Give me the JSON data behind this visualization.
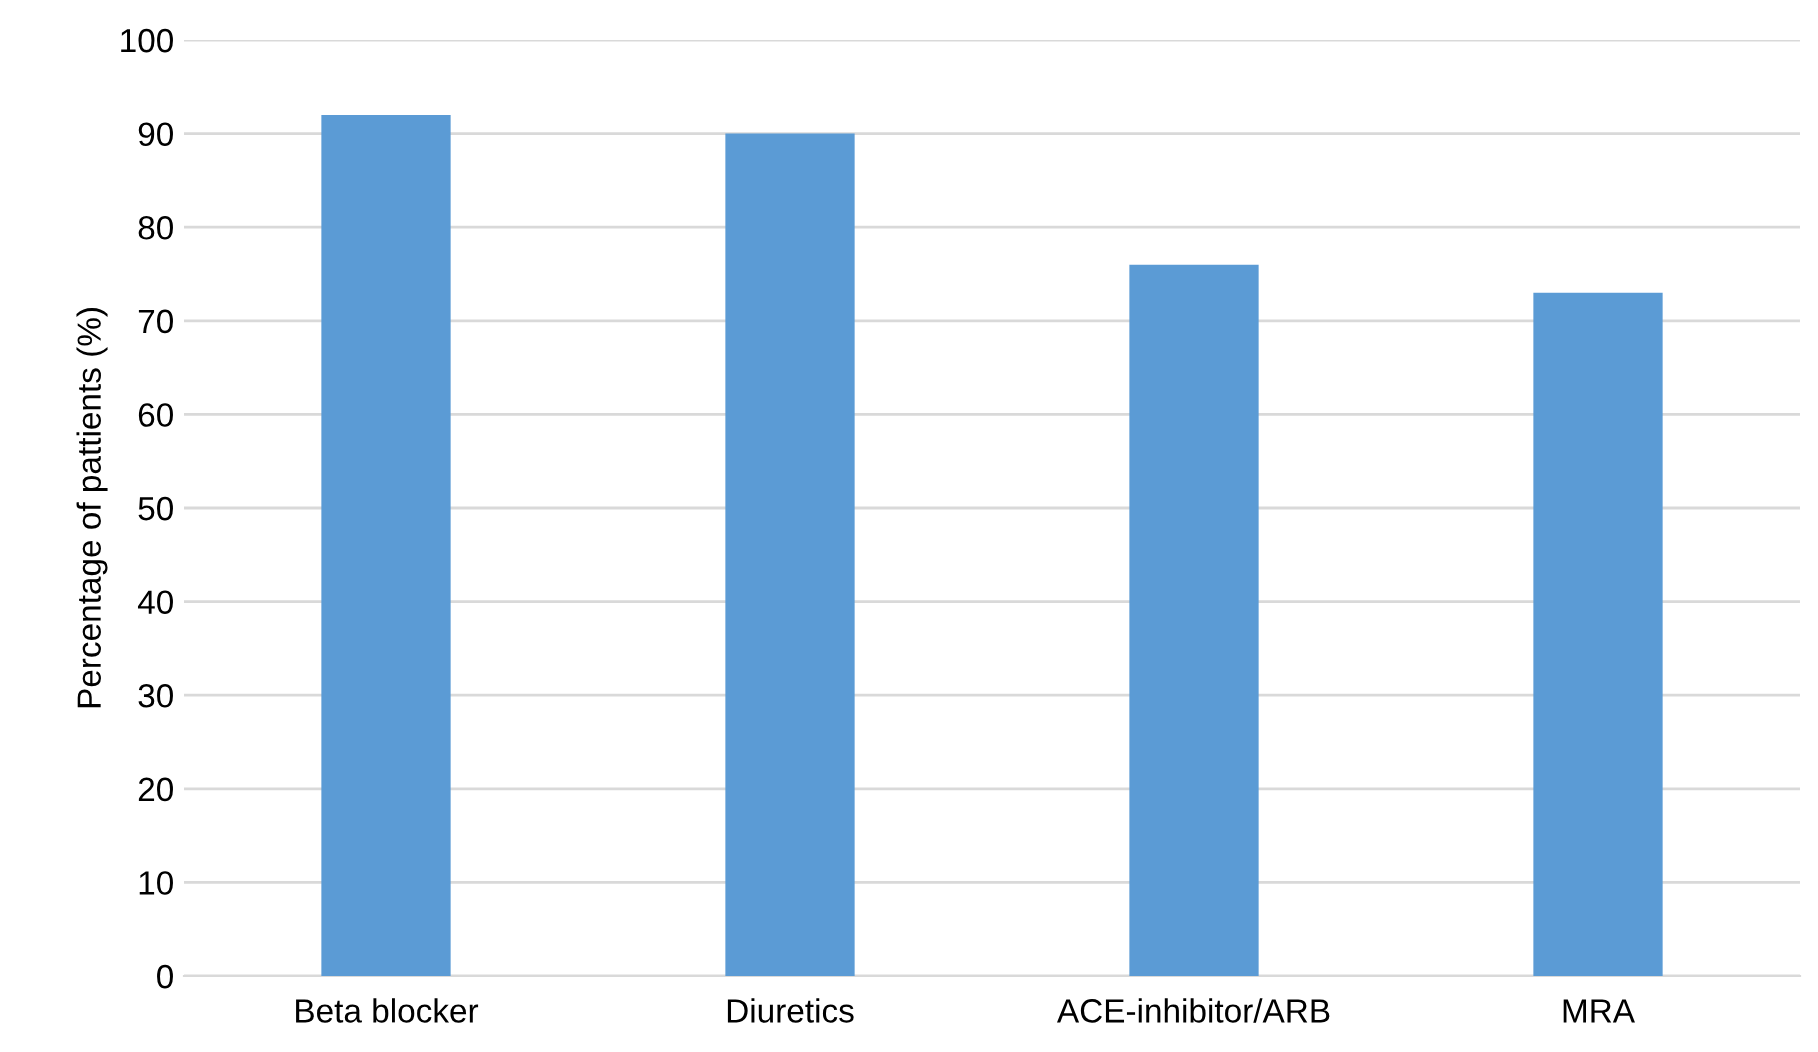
{
  "chart_data": {
    "type": "bar",
    "ylabel": "Percentage of pattients (%)",
    "categories": [
      "Beta blocker",
      "Diuretics",
      "ACE-inhibitor/ARB",
      "MRA"
    ],
    "values": [
      92,
      90,
      76,
      73
    ],
    "color": "#5b9bd5",
    "ylim": [
      0,
      100
    ],
    "yticks": [
      0,
      10,
      20,
      30,
      40,
      50,
      60,
      70,
      80,
      90,
      100
    ],
    "grid": "y"
  }
}
